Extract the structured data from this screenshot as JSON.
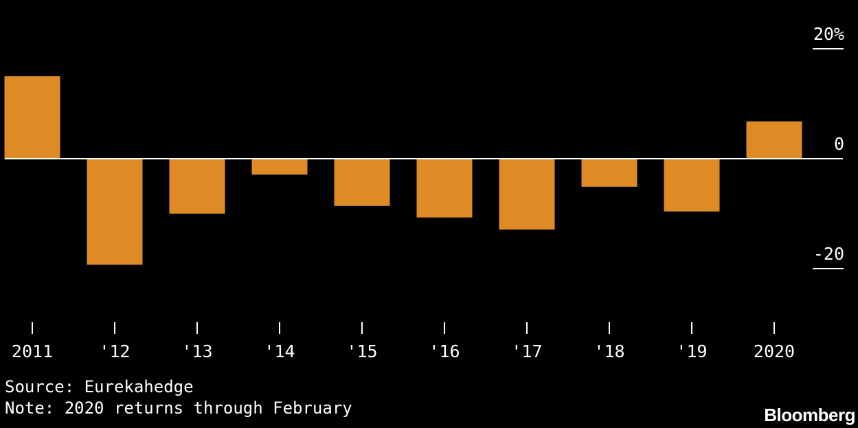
{
  "chart_data": {
    "type": "bar",
    "categories": [
      "2011",
      "'12",
      "'13",
      "'14",
      "'15",
      "'16",
      "'17",
      "'18",
      "'19",
      "2020"
    ],
    "values": [
      15,
      -19.3,
      -10,
      -2.9,
      -8.6,
      -10.7,
      -12.9,
      -5.1,
      -9.6,
      6.8
    ],
    "ylim": [
      -27,
      20
    ],
    "yticks": [
      {
        "value": 20,
        "label": "20%"
      },
      {
        "value": 0,
        "label": "0"
      },
      {
        "value": -20,
        "label": "-20"
      }
    ],
    "bar_color": "#de8b26",
    "title": "",
    "xlabel": "",
    "ylabel": ""
  },
  "footer": {
    "source": "Source: Eurekahedge",
    "note": "Note: 2020 returns through February"
  },
  "brand": "Bloomberg",
  "colors": {
    "background": "#000000",
    "text": "#ffffff",
    "bar": "#de8b26"
  }
}
